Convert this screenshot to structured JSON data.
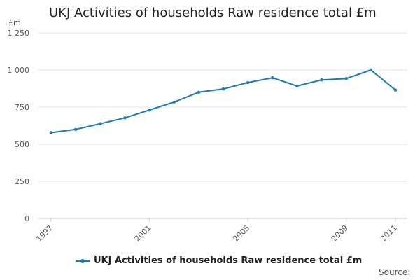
{
  "chart_data": {
    "type": "line",
    "title": "UKJ Activities of households Raw residence total £m",
    "ylabel": "£m",
    "xlabel": "",
    "x": [
      1997,
      1998,
      1999,
      2000,
      2001,
      2002,
      2003,
      2004,
      2005,
      2006,
      2007,
      2008,
      2009,
      2010,
      2011
    ],
    "series": [
      {
        "name": "UKJ Activities of households Raw residence total £m",
        "values": [
          578,
          600,
          638,
          678,
          730,
          784,
          850,
          872,
          915,
          947,
          892,
          933,
          942,
          1000,
          865
        ]
      }
    ],
    "ylim": [
      0,
      1250
    ],
    "y_ticks": [
      0,
      250,
      500,
      750,
      1000,
      1250
    ],
    "y_tick_labels": [
      "0",
      "250",
      "500",
      "750",
      "1 000",
      "1 250"
    ],
    "x_tick_labels": [
      "1997",
      "2001",
      "2005",
      "2009",
      "2011"
    ],
    "grid": true,
    "legend_position": "bottom",
    "colors": {
      "line": "#1a7ab5",
      "grid": "#e6e6e6",
      "axis": "#cccccc"
    }
  },
  "footer": {
    "source_label": "Source:"
  }
}
